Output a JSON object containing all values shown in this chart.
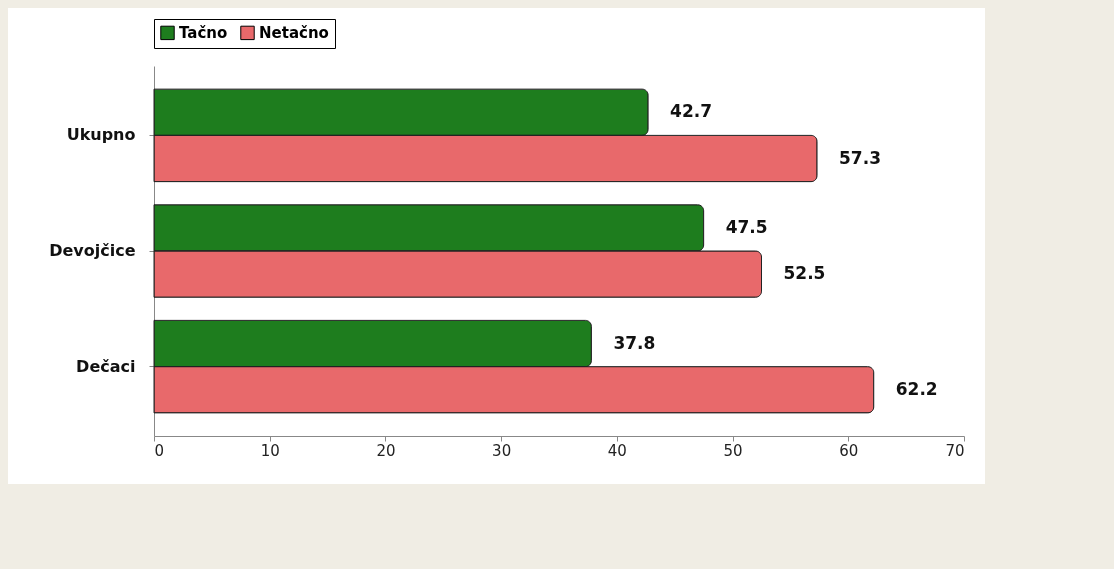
{
  "chart_data": {
    "type": "bar",
    "orientation": "horizontal",
    "categories": [
      "Ukupno",
      "Devojčice",
      "Dečaci"
    ],
    "series": [
      {
        "name": "Tačno",
        "color": "#1e7d1e",
        "values": [
          42.7,
          47.5,
          37.8
        ]
      },
      {
        "name": "Netačno",
        "color": "#e8696b",
        "values": [
          57.3,
          52.5,
          62.2
        ]
      }
    ],
    "xlim": [
      0,
      70
    ],
    "xticks": [
      0,
      10,
      20,
      30,
      40,
      50,
      60,
      70
    ],
    "grid": false,
    "legend": "top",
    "data_labels": true
  }
}
